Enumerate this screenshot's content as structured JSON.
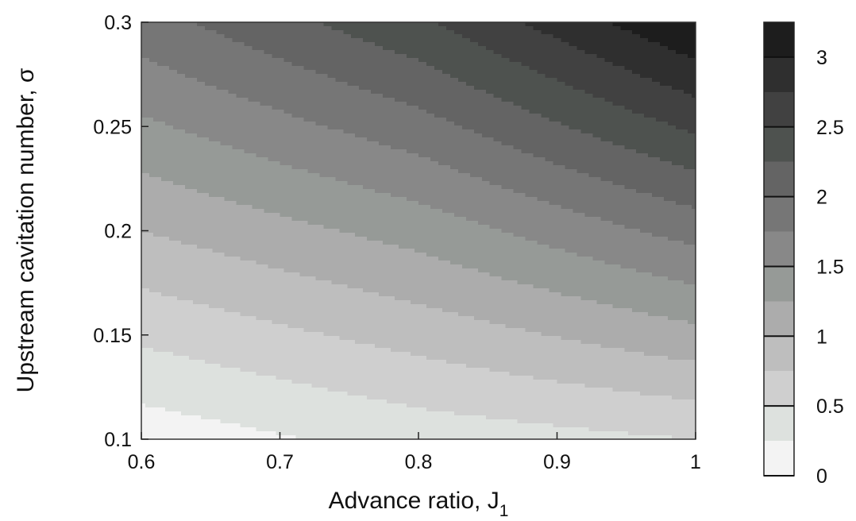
{
  "chart_data": {
    "type": "heatmap",
    "xlabel": "Advance ratio, J",
    "xlabel_subscript": "1",
    "ylabel": "Upstream cavitation number, σ",
    "xlim": [
      0.6,
      1.0
    ],
    "ylim": [
      0.1,
      0.3
    ],
    "x_ticks": [
      0.6,
      0.7,
      0.8,
      0.9,
      1.0
    ],
    "x_tick_labels": [
      "0.6",
      "0.7",
      "0.8",
      "0.9",
      "1"
    ],
    "y_ticks": [
      0.1,
      0.15,
      0.2,
      0.25,
      0.3
    ],
    "y_tick_labels": [
      "0.1",
      "0.15",
      "0.2",
      "0.25",
      "0.3"
    ],
    "colorbar": {
      "range": [
        0,
        3.25
      ],
      "ticks": [
        0,
        0.5,
        1,
        1.5,
        2,
        2.5,
        3
      ],
      "tick_labels": [
        "0",
        "0.5",
        "1",
        "1.5",
        "2",
        "2.5",
        "3"
      ],
      "levels": [
        0,
        0.25,
        0.5,
        0.75,
        1.0,
        1.25,
        1.5,
        1.75,
        2.0,
        2.25,
        2.5,
        2.75,
        3.0,
        3.25
      ],
      "colormap": "grayscale (white = low, black = high)"
    },
    "field_samples": {
      "x": [
        0.6,
        0.8,
        1.0
      ],
      "y": [
        0.1,
        0.2,
        0.3
      ],
      "z": [
        [
          0.1,
          0.35,
          0.5
        ],
        [
          1.0,
          1.35,
          1.85
        ],
        [
          1.9,
          2.45,
          3.25
        ]
      ]
    },
    "grid": false
  }
}
